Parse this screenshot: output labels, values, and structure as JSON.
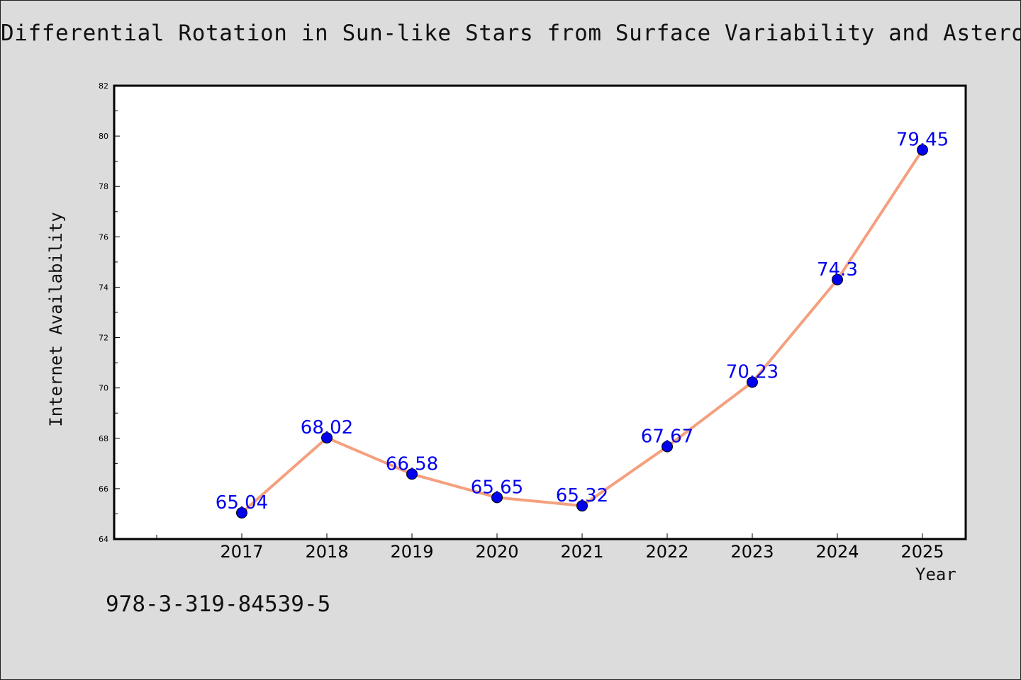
{
  "chart_data": {
    "type": "line",
    "title": "Differential Rotation in Sun-like Stars from Surface Variability and Asteroseismology",
    "xlabel": "Year",
    "ylabel": "Internet Availability",
    "categories": [
      "2017",
      "2018",
      "2019",
      "2020",
      "2021",
      "2022",
      "2023",
      "2024",
      "2025"
    ],
    "values": [
      65.04,
      68.02,
      66.58,
      65.65,
      65.32,
      67.67,
      70.23,
      74.3,
      79.45
    ],
    "data_labels": [
      "65.04",
      "68.02",
      "66.58",
      "65.65",
      "65.32",
      "67.67",
      "70.23",
      "74.3",
      "79.45"
    ],
    "ylim": [
      64,
      82
    ],
    "yticks": [
      "64",
      "66",
      "68",
      "70",
      "72",
      "74",
      "76",
      "78",
      "80",
      "82"
    ],
    "grid": false,
    "line_color": "#f4a07e",
    "marker_color": "#0000ee",
    "label_color": "#0000ee"
  },
  "footer": {
    "code": "978-3-319-84539-5"
  }
}
